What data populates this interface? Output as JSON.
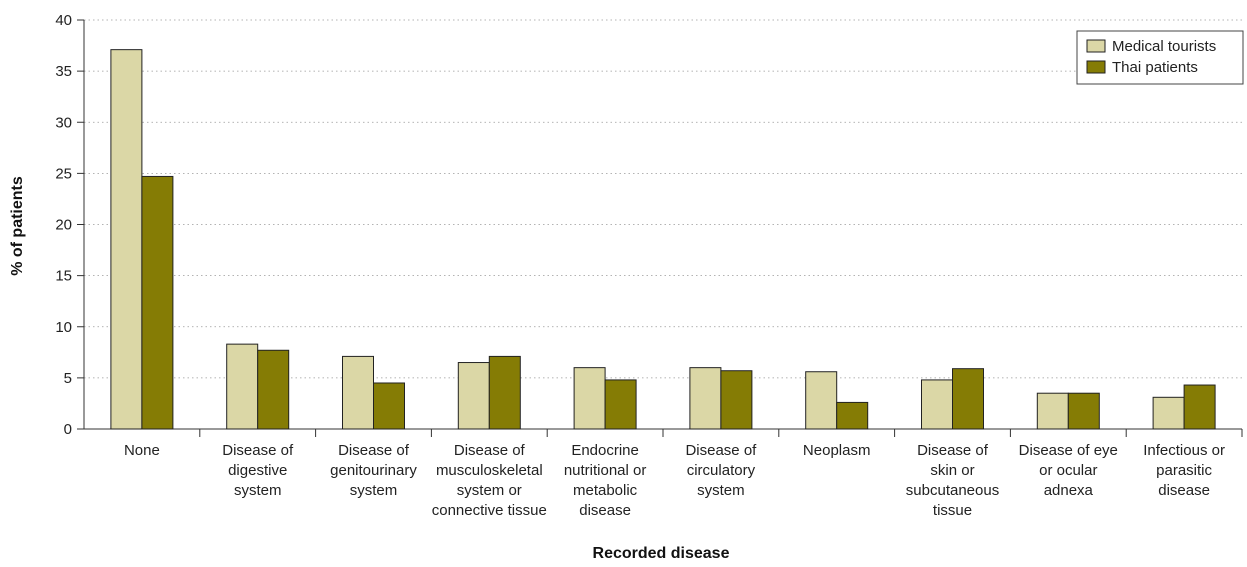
{
  "chart_data": {
    "type": "bar",
    "title": "",
    "xlabel": "Recorded disease",
    "ylabel": "% of patients",
    "ylim": [
      0,
      40
    ],
    "yticks": [
      0,
      5,
      10,
      15,
      20,
      25,
      30,
      35,
      40
    ],
    "grid": true,
    "legend_position": "top-right",
    "categories": [
      [
        "None"
      ],
      [
        "Disease of",
        "digestive",
        "system"
      ],
      [
        "Disease of",
        "genitourinary",
        "system"
      ],
      [
        "Disease of",
        "musculoskeletal",
        "system or",
        "connective tissue"
      ],
      [
        "Endocrine",
        "nutritional or",
        "metabolic",
        "disease"
      ],
      [
        "Disease of",
        "circulatory",
        "system"
      ],
      [
        "Neoplasm"
      ],
      [
        "Disease of",
        "skin or",
        "subcutaneous",
        "tissue"
      ],
      [
        "Disease of eye",
        "or ocular",
        "adnexa"
      ],
      [
        "Infectious or",
        "parasitic",
        "disease"
      ]
    ],
    "series": [
      {
        "name": "Medical tourists",
        "color": "#dbd7a6",
        "values": [
          37.1,
          8.3,
          7.1,
          6.5,
          6.0,
          6.0,
          5.6,
          4.8,
          3.5,
          3.1
        ]
      },
      {
        "name": "Thai patients",
        "color": "#857c05",
        "values": [
          24.7,
          7.7,
          4.5,
          7.1,
          4.8,
          5.7,
          2.6,
          5.9,
          3.5,
          4.3
        ]
      }
    ]
  }
}
